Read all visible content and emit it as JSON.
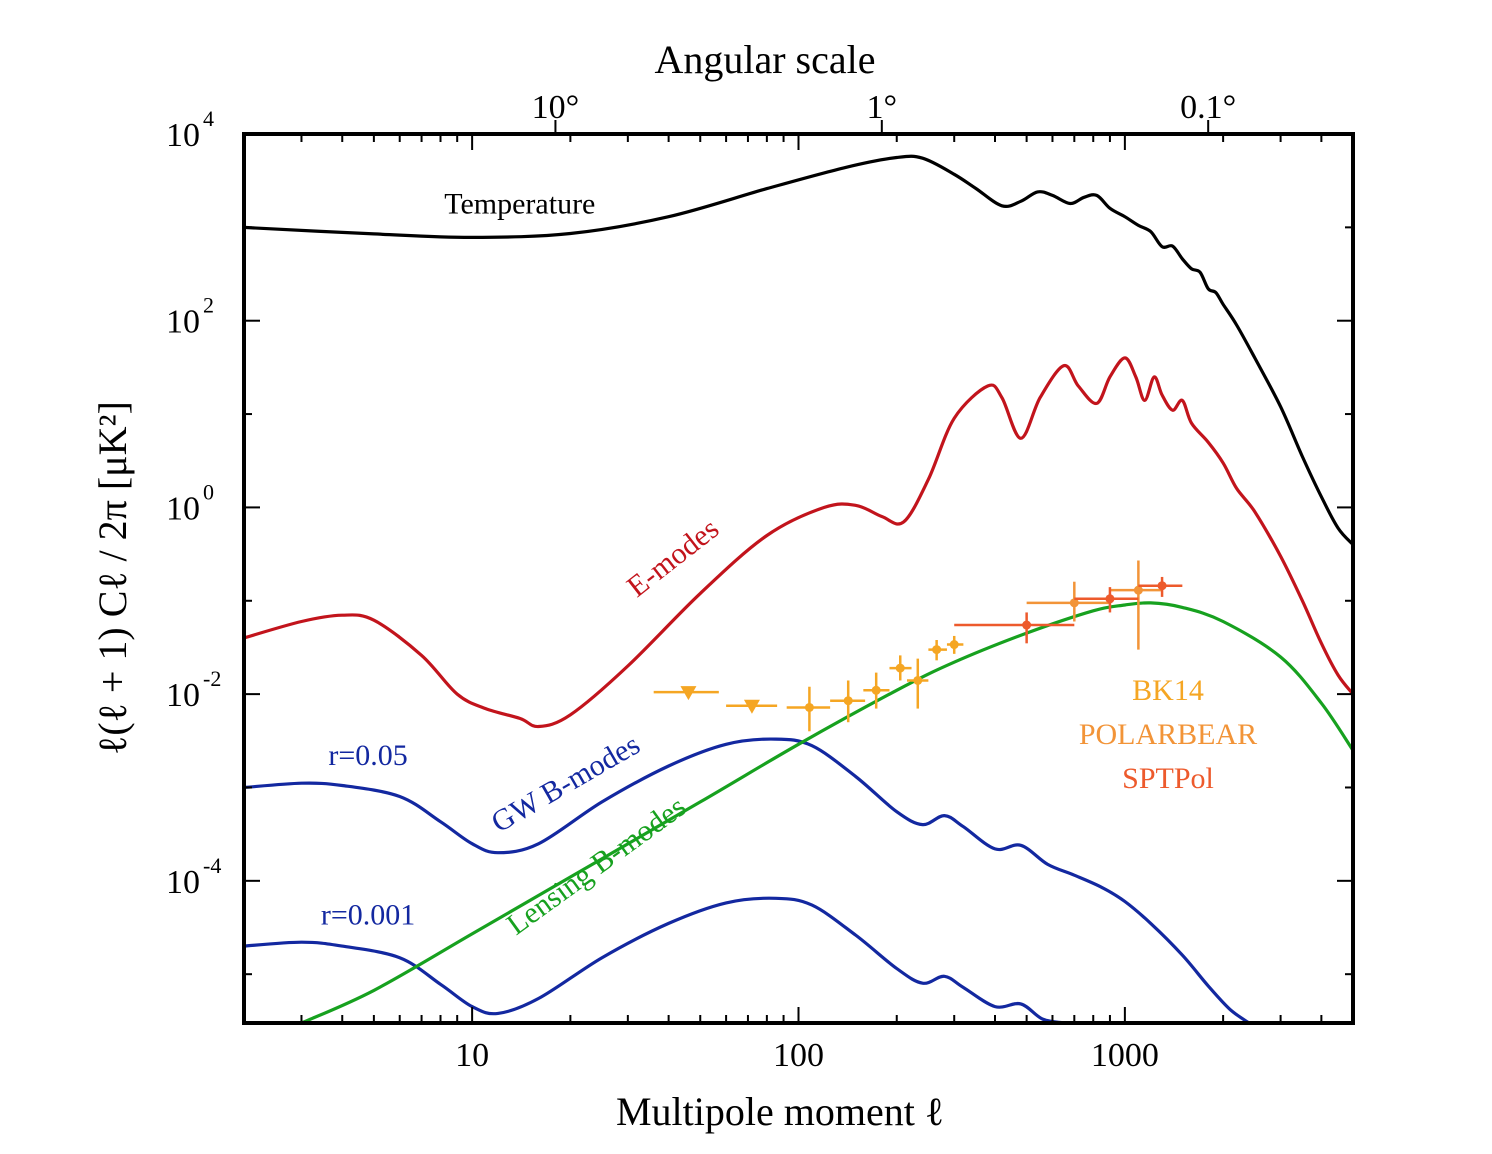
{
  "chart_data": {
    "type": "line",
    "xlabel": "Multipole moment ℓ",
    "ylabel": "ℓ(ℓ + 1) Cℓ / 2π [μK²]",
    "top_xlabel": "Angular scale",
    "xscale": "log",
    "yscale": "log",
    "xlim": [
      2,
      5000
    ],
    "ylim": [
      3e-06,
      10000
    ],
    "x_ticks": [
      {
        "value": 10,
        "label": "10"
      },
      {
        "value": 100,
        "label": "100"
      },
      {
        "value": 1000,
        "label": "1000"
      }
    ],
    "top_ticks": [
      {
        "value": 18,
        "label": "10°"
      },
      {
        "value": 180,
        "label": "1°"
      },
      {
        "value": 1800,
        "label": "0.1°"
      }
    ],
    "y_ticks": [
      {
        "value": 10000,
        "base": "10",
        "exp": "4"
      },
      {
        "value": 100,
        "base": "10",
        "exp": "2"
      },
      {
        "value": 1,
        "base": "10",
        "exp": "0"
      },
      {
        "value": 0.01,
        "base": "10",
        "exp": "-2"
      },
      {
        "value": 0.0001,
        "base": "10",
        "exp": "-4"
      }
    ],
    "series": [
      {
        "name": "Temperature",
        "color": "#000000",
        "points": [
          [
            2,
            1000
          ],
          [
            5,
            850
          ],
          [
            10,
            780
          ],
          [
            20,
            860
          ],
          [
            40,
            1300
          ],
          [
            80,
            2600
          ],
          [
            140,
            4400
          ],
          [
            200,
            5600
          ],
          [
            240,
            5500
          ],
          [
            300,
            3700
          ],
          [
            350,
            2600
          ],
          [
            420,
            1700
          ],
          [
            480,
            1900
          ],
          [
            540,
            2400
          ],
          [
            600,
            2200
          ],
          [
            680,
            1800
          ],
          [
            750,
            2100
          ],
          [
            820,
            2200
          ],
          [
            900,
            1600
          ],
          [
            1000,
            1300
          ],
          [
            1100,
            1050
          ],
          [
            1200,
            900
          ],
          [
            1300,
            620
          ],
          [
            1400,
            630
          ],
          [
            1500,
            460
          ],
          [
            1600,
            360
          ],
          [
            1700,
            330
          ],
          [
            1800,
            220
          ],
          [
            1900,
            200
          ],
          [
            2000,
            150
          ],
          [
            2200,
            90
          ],
          [
            2500,
            40
          ],
          [
            3000,
            12
          ],
          [
            3500,
            3.5
          ],
          [
            4000,
            1.3
          ],
          [
            4500,
            0.6
          ],
          [
            5000,
            0.4
          ]
        ]
      },
      {
        "name": "E-modes",
        "color": "#c2141c",
        "points": [
          [
            2,
            0.04
          ],
          [
            3,
            0.06
          ],
          [
            4,
            0.07
          ],
          [
            5,
            0.062
          ],
          [
            7,
            0.026
          ],
          [
            9,
            0.01
          ],
          [
            11,
            0.007
          ],
          [
            14,
            0.0055
          ],
          [
            16,
            0.0045
          ],
          [
            20,
            0.006
          ],
          [
            30,
            0.02
          ],
          [
            50,
            0.12
          ],
          [
            80,
            0.5
          ],
          [
            120,
            1.0
          ],
          [
            150,
            1.05
          ],
          [
            180,
            0.8
          ],
          [
            210,
            0.7
          ],
          [
            250,
            2.0
          ],
          [
            300,
            9
          ],
          [
            380,
            20
          ],
          [
            420,
            15
          ],
          [
            480,
            5.5
          ],
          [
            550,
            15
          ],
          [
            650,
            33
          ],
          [
            720,
            20
          ],
          [
            820,
            13
          ],
          [
            900,
            25
          ],
          [
            1000,
            40
          ],
          [
            1080,
            25
          ],
          [
            1150,
            14
          ],
          [
            1230,
            25
          ],
          [
            1300,
            16
          ],
          [
            1400,
            11
          ],
          [
            1500,
            14
          ],
          [
            1600,
            8
          ],
          [
            1800,
            5
          ],
          [
            2000,
            3
          ],
          [
            2200,
            1.6
          ],
          [
            2500,
            0.9
          ],
          [
            3000,
            0.3
          ],
          [
            3500,
            0.1
          ],
          [
            4000,
            0.035
          ],
          [
            4500,
            0.016
          ],
          [
            5000,
            0.01
          ]
        ]
      },
      {
        "name": "GW B-modes r=0.05",
        "color": "#1328a0",
        "points": [
          [
            2,
            0.001
          ],
          [
            3,
            0.00111
          ],
          [
            4,
            0.00105
          ],
          [
            6,
            0.0008
          ],
          [
            8,
            0.00043
          ],
          [
            10,
            0.00025
          ],
          [
            12,
            0.0002
          ],
          [
            16,
            0.00025
          ],
          [
            25,
            0.0007
          ],
          [
            40,
            0.0017
          ],
          [
            60,
            0.0029
          ],
          [
            85,
            0.0033
          ],
          [
            110,
            0.0028
          ],
          [
            150,
            0.0013
          ],
          [
            200,
            0.00055
          ],
          [
            240,
            0.0004
          ],
          [
            280,
            0.0005
          ],
          [
            320,
            0.00038
          ],
          [
            400,
            0.00022
          ],
          [
            480,
            0.00024
          ],
          [
            580,
            0.00015
          ],
          [
            700,
            0.000115
          ],
          [
            850,
            8.5e-05
          ],
          [
            1000,
            6e-05
          ],
          [
            1200,
            3.5e-05
          ],
          [
            1500,
            1.6e-05
          ],
          [
            1800,
            7.5e-06
          ],
          [
            2100,
            4.2e-06
          ],
          [
            2400,
            3e-06
          ]
        ]
      },
      {
        "name": "GW B-modes r=0.001",
        "color": "#1328a0",
        "points": [
          [
            2,
            2e-05
          ],
          [
            3,
            2.2e-05
          ],
          [
            4,
            2e-05
          ],
          [
            6,
            1.5e-05
          ],
          [
            8,
            7.8e-06
          ],
          [
            10,
            4.5e-06
          ],
          [
            12,
            3.8e-06
          ],
          [
            16,
            5.5e-06
          ],
          [
            25,
            1.5e-05
          ],
          [
            40,
            3.5e-05
          ],
          [
            60,
            5.8e-05
          ],
          [
            85,
            6.5e-05
          ],
          [
            110,
            5.5e-05
          ],
          [
            150,
            2.6e-05
          ],
          [
            200,
            1.15e-05
          ],
          [
            240,
            8e-06
          ],
          [
            280,
            9.5e-06
          ],
          [
            320,
            7.2e-06
          ],
          [
            400,
            4.5e-06
          ],
          [
            480,
            4.8e-06
          ],
          [
            560,
            3.3e-06
          ],
          [
            660,
            3e-06
          ]
        ]
      },
      {
        "name": "Lensing B-modes",
        "color": "#17a11f",
        "points": [
          [
            3,
            3e-06
          ],
          [
            5,
            6.7e-06
          ],
          [
            10,
            2.7e-05
          ],
          [
            20,
            0.00011
          ],
          [
            50,
            0.0007
          ],
          [
            100,
            0.0029
          ],
          [
            200,
            0.011
          ],
          [
            300,
            0.022
          ],
          [
            500,
            0.045
          ],
          [
            800,
            0.078
          ],
          [
            1000,
            0.09
          ],
          [
            1200,
            0.095
          ],
          [
            1500,
            0.085
          ],
          [
            2000,
            0.06
          ],
          [
            3000,
            0.025
          ],
          [
            4000,
            0.008
          ],
          [
            5000,
            0.0025
          ]
        ]
      }
    ],
    "annotations": [
      {
        "text": "Temperature",
        "x": 14,
        "y": 1400,
        "color": "#000000",
        "rotate": 0
      },
      {
        "text": "E-modes",
        "x": 43,
        "y": 0.24,
        "color": "#c2141c",
        "rotate": -38
      },
      {
        "text": "GW B-modes",
        "x": 20,
        "y": 0.0009,
        "color": "#1328a0",
        "rotate": -30
      },
      {
        "text": "Lensing B-modes",
        "x": 25,
        "y": 0.00012,
        "color": "#17a11f",
        "rotate": -36
      },
      {
        "text": "r=0.05",
        "x": 4.8,
        "y": 0.00175,
        "color": "#1328a0",
        "rotate": 0
      },
      {
        "text": "r=0.001",
        "x": 4.8,
        "y": 3.4e-05,
        "color": "#1328a0",
        "rotate": 0
      }
    ],
    "data_series": [
      {
        "name": "BK14",
        "color": "#f5a623",
        "points": [
          {
            "x": 46,
            "y": 0.0105,
            "xerr": [
              36,
              57
            ],
            "yerr": null,
            "upper_limit": true
          },
          {
            "x": 72,
            "y": 0.0075,
            "xerr": [
              60,
              86
            ],
            "yerr": null,
            "upper_limit": true
          },
          {
            "x": 108,
            "y": 0.0072,
            "xerr": [
              92,
              125
            ],
            "yerr": [
              0.004,
              0.012
            ]
          },
          {
            "x": 142,
            "y": 0.0085,
            "xerr": [
              125,
              160
            ],
            "yerr": [
              0.005,
              0.014
            ]
          },
          {
            "x": 173,
            "y": 0.011,
            "xerr": [
              158,
              190
            ],
            "yerr": [
              0.007,
              0.017
            ]
          },
          {
            "x": 205,
            "y": 0.019,
            "xerr": [
              190,
              222
            ],
            "yerr": [
              0.014,
              0.026
            ]
          },
          {
            "x": 232,
            "y": 0.014,
            "xerr": [
              215,
              250
            ],
            "yerr": [
              0.007,
              0.024
            ]
          },
          {
            "x": 265,
            "y": 0.03,
            "xerr": [
              250,
              285
            ],
            "yerr": [
              0.023,
              0.038
            ]
          },
          {
            "x": 300,
            "y": 0.034,
            "xerr": [
              285,
              320
            ],
            "yerr": [
              0.027,
              0.042
            ]
          }
        ]
      },
      {
        "name": "POLARBEAR",
        "color": "#f29438",
        "points": [
          {
            "x": 700,
            "y": 0.095,
            "xerr": [
              500,
              900
            ],
            "yerr": [
              0.06,
              0.16
            ]
          },
          {
            "x": 1100,
            "y": 0.13,
            "xerr": [
              900,
              1300
            ],
            "yerr": [
              0.03,
              0.27
            ]
          }
        ]
      },
      {
        "name": "SPTPol",
        "color": "#ed5a2c",
        "points": [
          {
            "x": 500,
            "y": 0.055,
            "xerr": [
              300,
              700
            ],
            "yerr": [
              0.035,
              0.075
            ]
          },
          {
            "x": 900,
            "y": 0.105,
            "xerr": [
              700,
              1100
            ],
            "yerr": [
              0.075,
              0.14
            ]
          },
          {
            "x": 1300,
            "y": 0.145,
            "xerr": [
              1100,
              1500
            ],
            "yerr": [
              0.11,
              0.18
            ]
          }
        ]
      }
    ],
    "legend": {
      "placement": "right, inside plot",
      "entries": [
        {
          "label": "BK14",
          "color": "#f5a623"
        },
        {
          "label": "POLARBEAR",
          "color": "#f29438"
        },
        {
          "label": "SPTPol",
          "color": "#ed5a2c"
        }
      ]
    },
    "grid": false
  }
}
